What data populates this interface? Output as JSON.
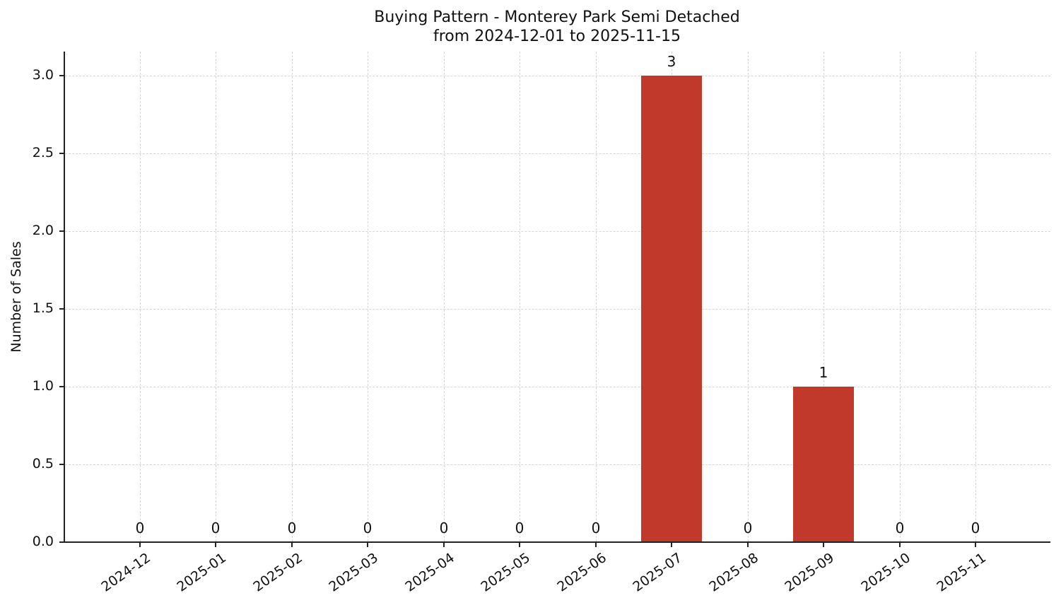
{
  "title_line1": "Buying Pattern - Monterey Park Semi Detached",
  "title_line2": "from 2024-12-01 to 2025-11-15",
  "ylabel": "Number of Sales",
  "bar_color": "#c0392b",
  "yticks": [
    "0.0",
    "0.5",
    "1.0",
    "1.5",
    "2.0",
    "2.5",
    "3.0"
  ],
  "chart_data": {
    "type": "bar",
    "title": "Buying Pattern - Monterey Park Semi Detached\nfrom 2024-12-01 to 2025-11-15",
    "xlabel": "",
    "ylabel": "Number of Sales",
    "categories": [
      "2024-12",
      "2025-01",
      "2025-02",
      "2025-03",
      "2025-04",
      "2025-05",
      "2025-06",
      "2025-07",
      "2025-08",
      "2025-09",
      "2025-10",
      "2025-11"
    ],
    "values": [
      0,
      0,
      0,
      0,
      0,
      0,
      0,
      3,
      0,
      1,
      0,
      0
    ],
    "data_labels": [
      "0",
      "0",
      "0",
      "0",
      "0",
      "0",
      "0",
      "3",
      "0",
      "1",
      "0",
      "0"
    ],
    "ylim": [
      0,
      3.15
    ],
    "yticks": [
      0.0,
      0.5,
      1.0,
      1.5,
      2.0,
      2.5,
      3.0
    ],
    "grid": true,
    "grid_style": "dashed",
    "legend": null,
    "color": "#c0392b"
  }
}
